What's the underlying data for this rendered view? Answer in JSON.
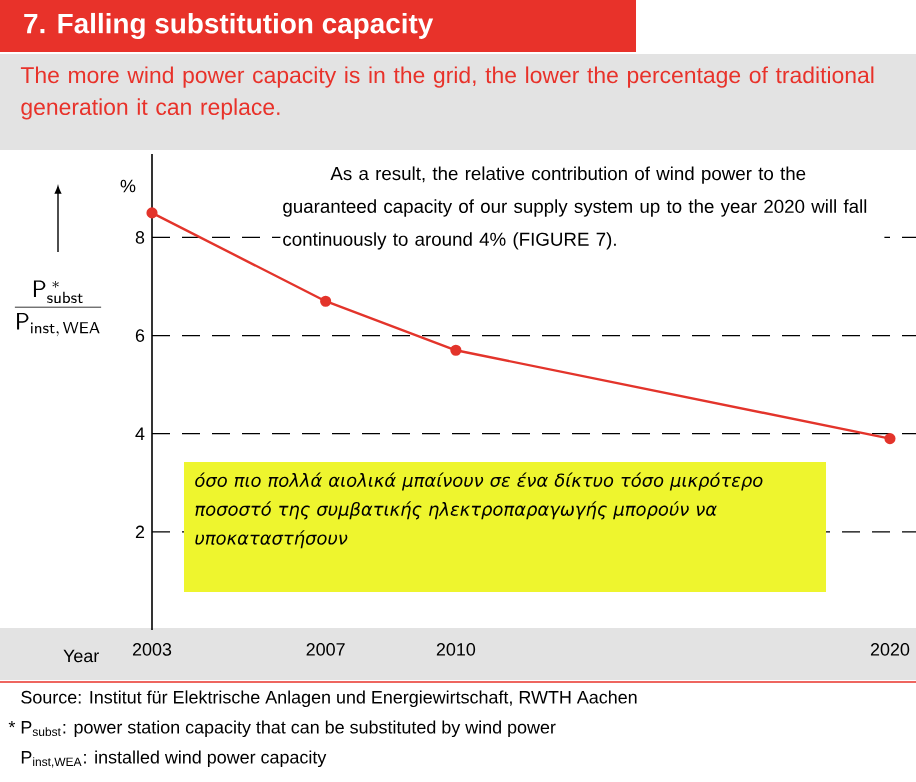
{
  "chart_data": {
    "type": "line",
    "title": "7. Falling substitution capacity",
    "subtitle": "The more wind power capacity is in the grid, the lower the percentage of traditional generation it can replace.",
    "xlabel": "Year",
    "ylabel": "\\frac{\\mathsf{P}_{\\mathsf{subst}}^{\\;*}}{\\mathsf{P}_{\\mathsf{inst,\\,WEA}}}",
    "x": [
      2003,
      2007,
      2010,
      2020
    ],
    "values": [
      8.5,
      6.7,
      5.7,
      3.9
    ],
    "color": "#e3342b",
    "marker": "circle",
    "grid": "y",
    "xlim": [
      2003,
      2020.6
    ],
    "ylim": [
      0,
      9.7
    ],
    "xticks": [
      2003,
      2007,
      2010,
      2020
    ],
    "yticks": [
      2,
      4,
      6,
      8
    ],
    "annotations": [
      "%",
      "As a result, the relative contribution of wind power to the guaranteed capacity of our supply system up to the year 2020 will fall continuously to around 4% (FIGURE 7).",
      "όσο πιο πολλά αιολικά μπαίνουν σε ένα δίκτυο τόσο μικρότερο ποσοστό της συμβατικής ηλεκτροπαραγωγής μπορούν να υποκαταστήσουν",
      "Source: Institut für Elektrische Anlagen und Energiewirtschaft, RWTH Aachen",
      "* P$_{subst}$: power station capacity that can be substituted by wind power",
      "P$_{inst,WEA}$: installed wind power capacity"
    ]
  }
}
